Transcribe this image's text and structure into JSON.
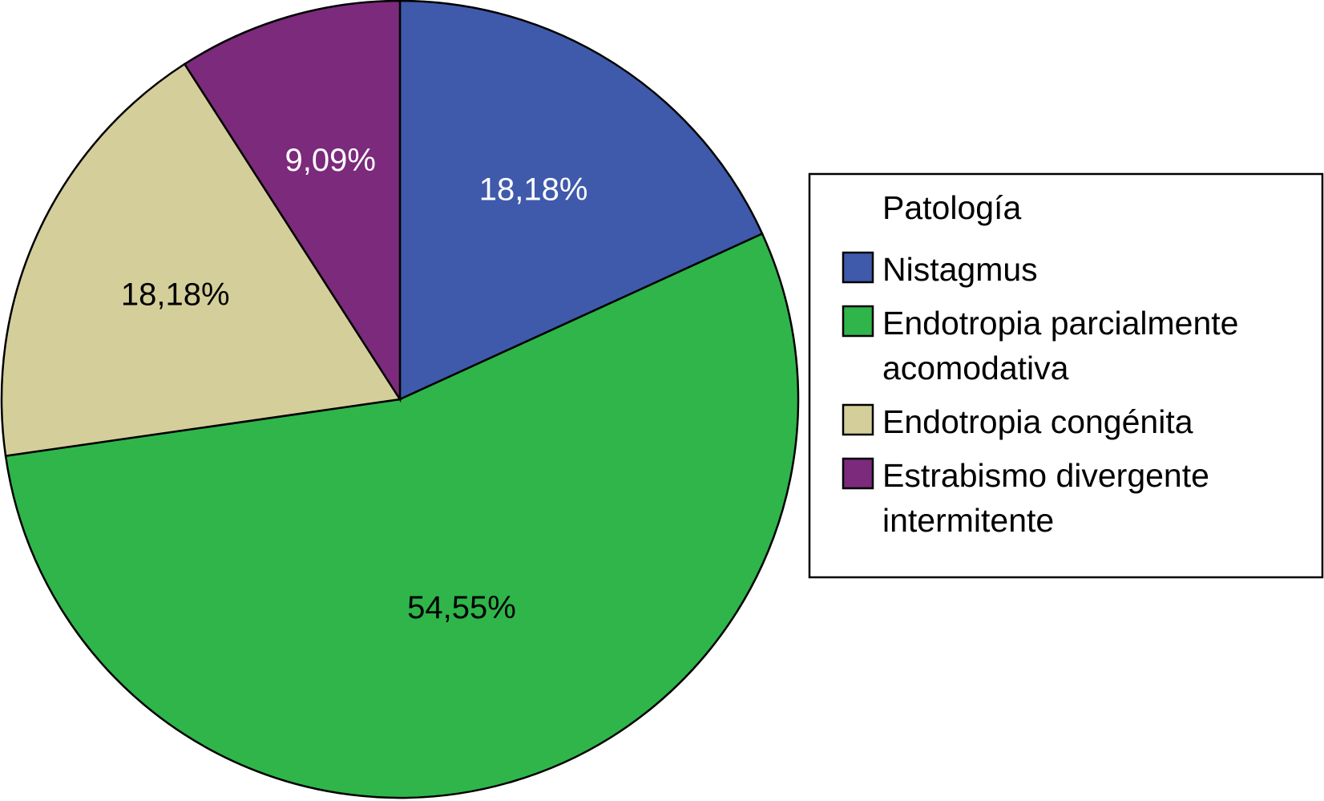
{
  "chart_data": {
    "type": "pie",
    "legend": {
      "title": "Patología",
      "placement": "right"
    },
    "slices": [
      {
        "name": "Nistagmus",
        "name_lines": [
          "Nistagmus"
        ],
        "value": 18.18,
        "label": "18,18%",
        "color": "#3f5aab",
        "label_color": "#ffffff"
      },
      {
        "name": "Endotropia parcialmente acomodativa",
        "name_lines": [
          "Endotropia parcialmente",
          "acomodativa"
        ],
        "value": 54.55,
        "label": "54,55%",
        "color": "#2fb54a",
        "label_color": "#000000"
      },
      {
        "name": "Endotropia congénita",
        "name_lines": [
          "Endotropia congénita"
        ],
        "value": 18.18,
        "label": "18,18%",
        "color": "#d4cf9a",
        "label_color": "#000000"
      },
      {
        "name": "Estrabismo divergente intermitente",
        "name_lines": [
          "Estrabismo divergente",
          "intermitente"
        ],
        "value": 9.09,
        "label": "9,09%",
        "color": "#7b2a7c",
        "label_color": "#ffffff"
      }
    ],
    "start_angle": "12 o'clock",
    "direction": "clockwise"
  }
}
